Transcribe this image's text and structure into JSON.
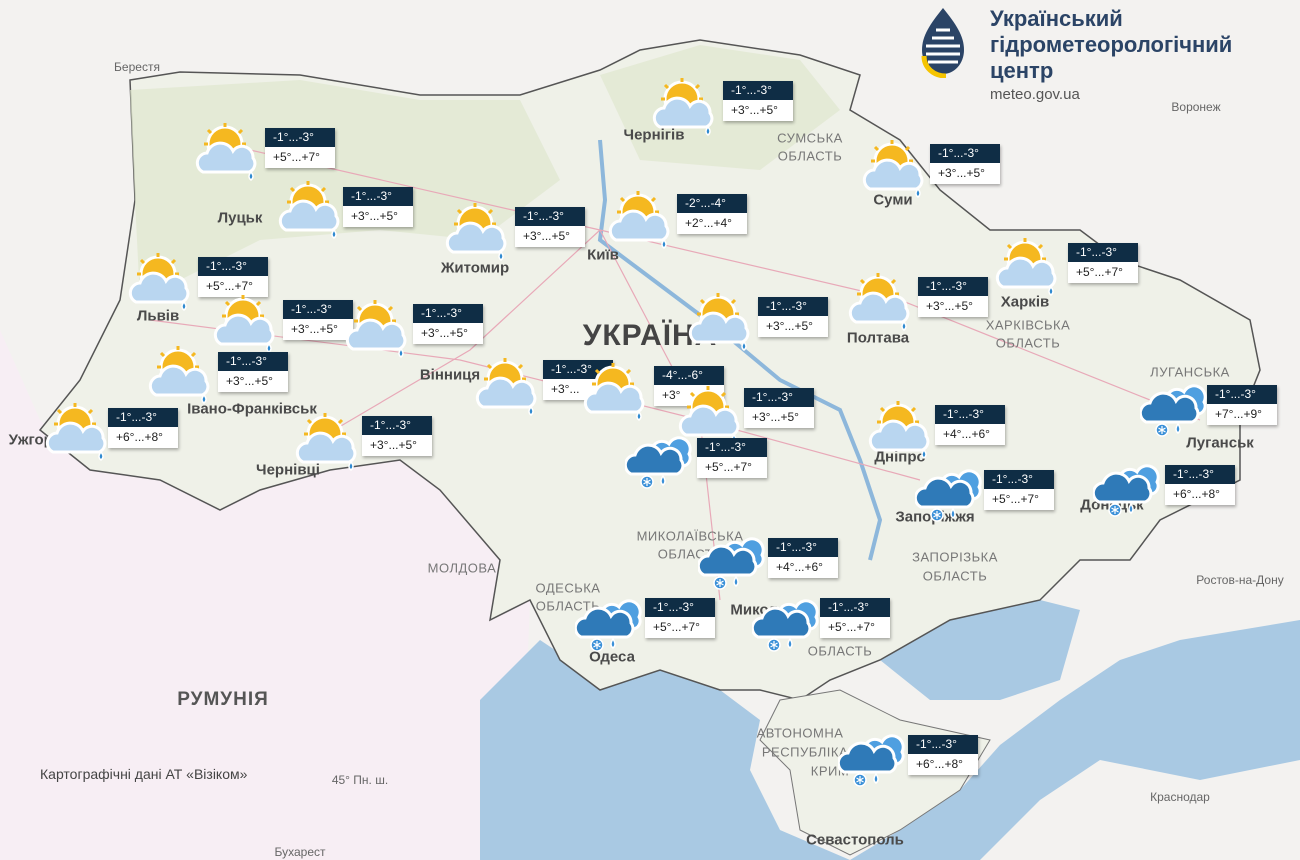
{
  "header": {
    "org_line1": "Український",
    "org_line2": "гідрометеорологічний",
    "org_line3": "центр",
    "url": "meteo.gov.ua"
  },
  "map": {
    "credit": "Картографічні дані АТ «Візіком»",
    "country_label": "УКРАЇНА",
    "labels": {
      "berestia": "Берестя",
      "voronezh": "Воронеж",
      "chernihiv": "Чернігів",
      "sumy_oblast_1": "СУМСЬКА",
      "sumy_oblast_2": "ОБЛАСТЬ",
      "sumy": "Суми",
      "lutsk": "Луцьк",
      "zhytomyr": "Житомир",
      "kyiv": "Київ",
      "lviv": "Львів",
      "poltava": "Полтава",
      "kharkiv": "Харків",
      "kharkiv_oblast_1": "ХАРКІВСЬКА",
      "kharkiv_oblast_2": "ОБЛАСТЬ",
      "vinnytsia": "Вінниця",
      "ivano_frankivsk": "Івано-Франківськ",
      "uzhhorod": "Ужгород",
      "chernivtsi": "Чернівці",
      "dnipro": "Дніпро",
      "luhansk": "Луганськ",
      "luhansk_oblast": "ЛУГАНСЬКА",
      "zaporizhzhia": "Запоріжжя",
      "donetsk": "Донецьк",
      "zap_oblast_1": "ЗАПОРІЗЬКА",
      "zap_oblast_2": "ОБЛАСТЬ",
      "rostov": "Ростов-на-Дону",
      "moldova": "МОЛДОВА",
      "mykolaiv_oblast_1": "МИКОЛАЇВСЬКА",
      "mykolaiv_oblast_2": "ОБЛАСТЬ",
      "odesa_oblast_1": "ОДЕСЬКА",
      "odesa_oblast_2": "ОБЛАСТЬ",
      "odesa": "Одеса",
      "mykolaiv": "Миколаїв",
      "kherson_oblast": "ОБЛАСТЬ",
      "romania": "РУМУНІЯ",
      "lat45": "45° Пн. ш.",
      "krasnodar": "Краснодар",
      "sevastopol": "Севастополь",
      "bucharest": "Бухарест",
      "crimea_1": "АВТОНОМНА",
      "crimea_2": "РЕСПУБЛІКА",
      "crimea_3": "КРИМ"
    }
  },
  "forecasts": [
    {
      "icon": "partly-cloudy-rain-icon",
      "night": "-1°...-3°",
      "day": "+5°...+7°"
    },
    {
      "icon": "partly-cloudy-rain-icon",
      "night": "-1°...-3°",
      "day": "+3°...+5°"
    },
    {
      "icon": "partly-cloudy-rain-icon",
      "night": "-1°...-3°",
      "day": "+3°...+5°"
    },
    {
      "icon": "partly-cloudy-rain-icon",
      "night": "-2°...-4°",
      "day": "+2°...+4°"
    },
    {
      "icon": "partly-cloudy-rain-icon",
      "night": "-1°...-3°",
      "day": "+3°...+5°"
    },
    {
      "icon": "partly-cloudy-rain-icon",
      "night": "-1°...-3°",
      "day": "+3°...+5°"
    },
    {
      "icon": "partly-cloudy-rain-icon",
      "night": "-1°...-3°",
      "day": "+5°...+7°"
    },
    {
      "icon": "partly-cloudy-rain-icon",
      "night": "-1°...-3°",
      "day": "+3°...+5°"
    },
    {
      "icon": "partly-cloudy-rain-icon",
      "night": "-1°...-3°",
      "day": "+3°...+5°"
    },
    {
      "icon": "partly-cloudy-rain-icon",
      "night": "-1°...-3°",
      "day": "+5°...+7°"
    },
    {
      "icon": "partly-cloudy-rain-icon",
      "night": "-1°...-3°",
      "day": "+3°...+5°"
    },
    {
      "icon": "partly-cloudy-rain-icon",
      "night": "-1°...-3°",
      "day": "+3°...+5°"
    },
    {
      "icon": "partly-cloudy-rain-icon",
      "night": "-1°...-3°",
      "day": "+3°...+5°"
    },
    {
      "icon": "partly-cloudy-rain-icon",
      "night": "-1°...-3°",
      "day": "+6°...+8°"
    },
    {
      "icon": "partly-cloudy-rain-icon",
      "night": "-1°...-3°",
      "day": "+3°...+5°"
    },
    {
      "icon": "partly-cloudy-rain-icon",
      "night": "-1°...-3°",
      "day": "+3°..."
    },
    {
      "icon": "partly-cloudy-rain-icon",
      "night": "-4°...-6°",
      "day": "+3°"
    },
    {
      "icon": "partly-cloudy-rain-icon",
      "night": "-1°...-3°",
      "day": "+3°...+5°"
    },
    {
      "icon": "rain-snow-icon",
      "night": "-1°...-3°",
      "day": "+5°...+7°"
    },
    {
      "icon": "partly-cloudy-rain-icon",
      "night": "-1°...-3°",
      "day": "+4°...+6°"
    },
    {
      "icon": "rain-snow-icon",
      "night": "-1°...-3°",
      "day": "+7°...+9°"
    },
    {
      "icon": "rain-snow-icon",
      "night": "-1°...-3°",
      "day": "+5°...+7°"
    },
    {
      "icon": "rain-snow-icon",
      "night": "-1°...-3°",
      "day": "+6°...+8°"
    },
    {
      "icon": "rain-snow-icon",
      "night": "-1°...-3°",
      "day": "+4°...+6°"
    },
    {
      "icon": "rain-snow-icon",
      "night": "-1°...-3°",
      "day": "+5°...+7°"
    },
    {
      "icon": "rain-snow-icon",
      "night": "-1°...-3°",
      "day": "+5°...+7°"
    },
    {
      "icon": "rain-snow-icon",
      "night": "-1°...-3°",
      "day": "+6°...+8°"
    }
  ],
  "colors": {
    "night_box": "#0f2d45",
    "sun": "#f5b820",
    "cloud_light": "#b9d6f0",
    "cloud_dark": "#2f7ab8",
    "sea": "#a9c9e3",
    "land": "#eef0e6"
  }
}
